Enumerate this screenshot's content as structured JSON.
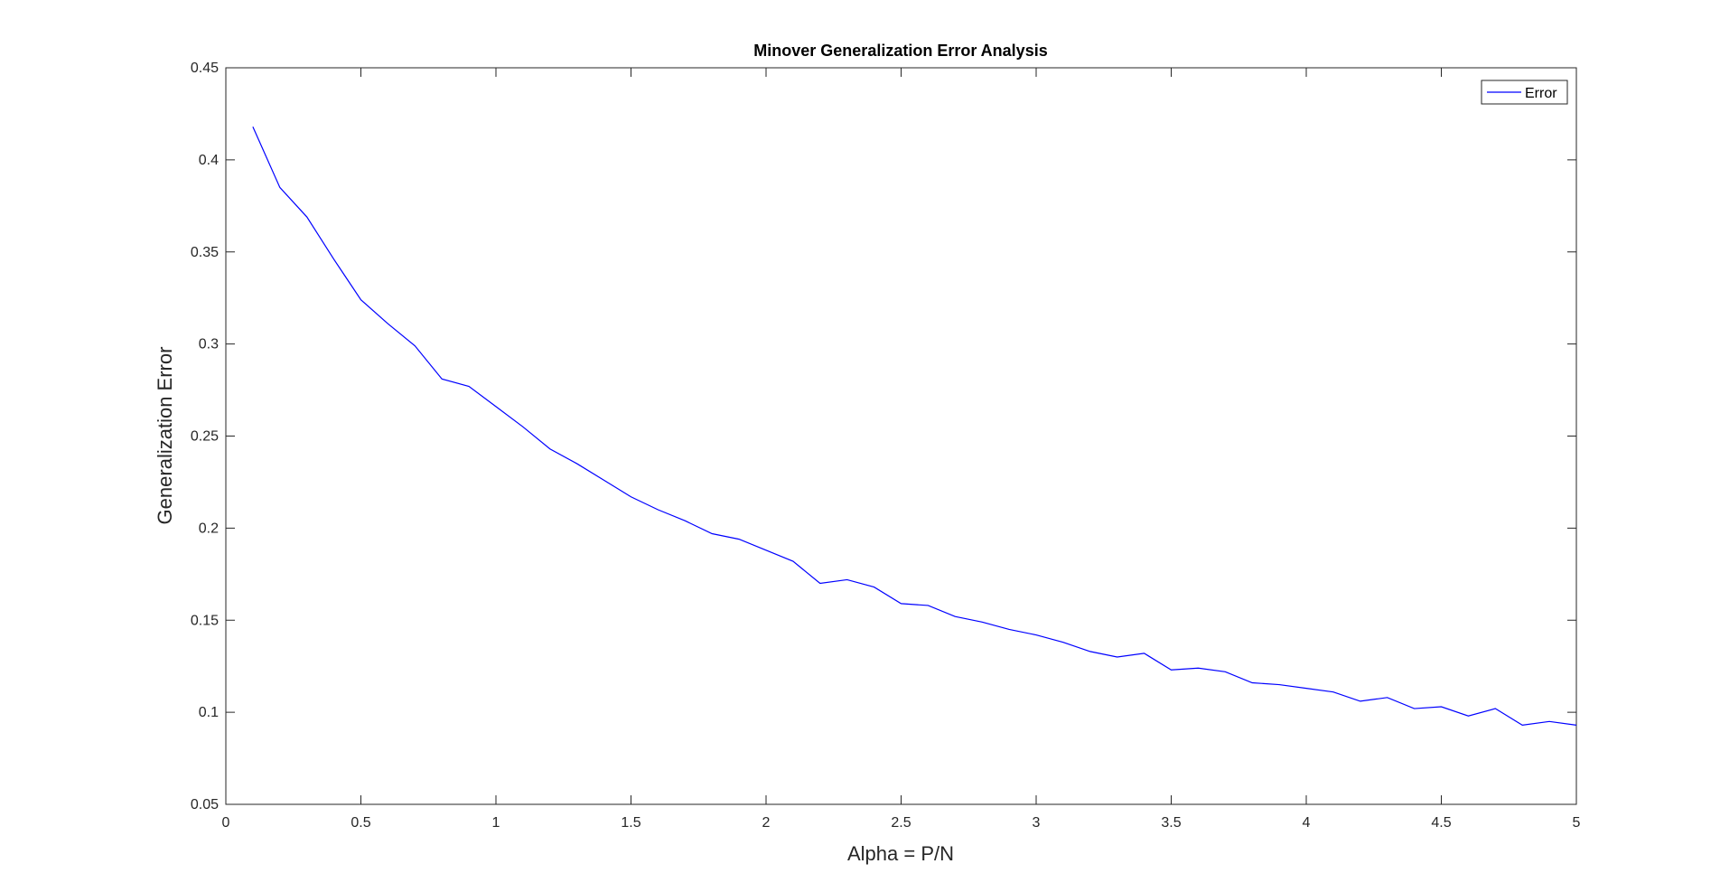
{
  "chart_data": {
    "type": "line",
    "title": "Minover Generalization Error Analysis",
    "xlabel": "Alpha = P/N",
    "ylabel": "Generalization Error",
    "xlim": [
      0,
      5
    ],
    "ylim": [
      0.05,
      0.45
    ],
    "xticks": [
      0,
      0.5,
      1,
      1.5,
      2,
      2.5,
      3,
      3.5,
      4,
      4.5,
      5
    ],
    "xtick_labels": [
      "0",
      "0.5",
      "1",
      "1.5",
      "2",
      "2.5",
      "3",
      "3.5",
      "4",
      "4.5",
      "5"
    ],
    "yticks": [
      0.05,
      0.1,
      0.15,
      0.2,
      0.25,
      0.3,
      0.35,
      0.4,
      0.45
    ],
    "ytick_labels": [
      "0.05",
      "0.1",
      "0.15",
      "0.2",
      "0.25",
      "0.3",
      "0.35",
      "0.4",
      "0.45"
    ],
    "grid": false,
    "legend_position": "top-right",
    "series": [
      {
        "name": "Error",
        "color": "#0000ff",
        "x": [
          0.1,
          0.2,
          0.3,
          0.4,
          0.5,
          0.6,
          0.7,
          0.8,
          0.9,
          1.0,
          1.1,
          1.2,
          1.3,
          1.4,
          1.5,
          1.6,
          1.7,
          1.8,
          1.9,
          2.0,
          2.1,
          2.2,
          2.3,
          2.4,
          2.5,
          2.6,
          2.7,
          2.8,
          2.9,
          3.0,
          3.1,
          3.2,
          3.3,
          3.4,
          3.5,
          3.6,
          3.7,
          3.8,
          3.9,
          4.0,
          4.1,
          4.2,
          4.3,
          4.4,
          4.5,
          4.6,
          4.7,
          4.8,
          4.9,
          5.0
        ],
        "y": [
          0.418,
          0.385,
          0.369,
          0.346,
          0.324,
          0.311,
          0.299,
          0.281,
          0.277,
          0.266,
          0.255,
          0.243,
          0.235,
          0.226,
          0.217,
          0.21,
          0.204,
          0.197,
          0.194,
          0.188,
          0.182,
          0.17,
          0.172,
          0.168,
          0.159,
          0.158,
          0.152,
          0.149,
          0.145,
          0.142,
          0.138,
          0.133,
          0.13,
          0.132,
          0.123,
          0.124,
          0.122,
          0.116,
          0.115,
          0.113,
          0.111,
          0.106,
          0.108,
          0.102,
          0.103,
          0.098,
          0.102,
          0.093,
          0.095,
          0.093
        ]
      }
    ]
  }
}
